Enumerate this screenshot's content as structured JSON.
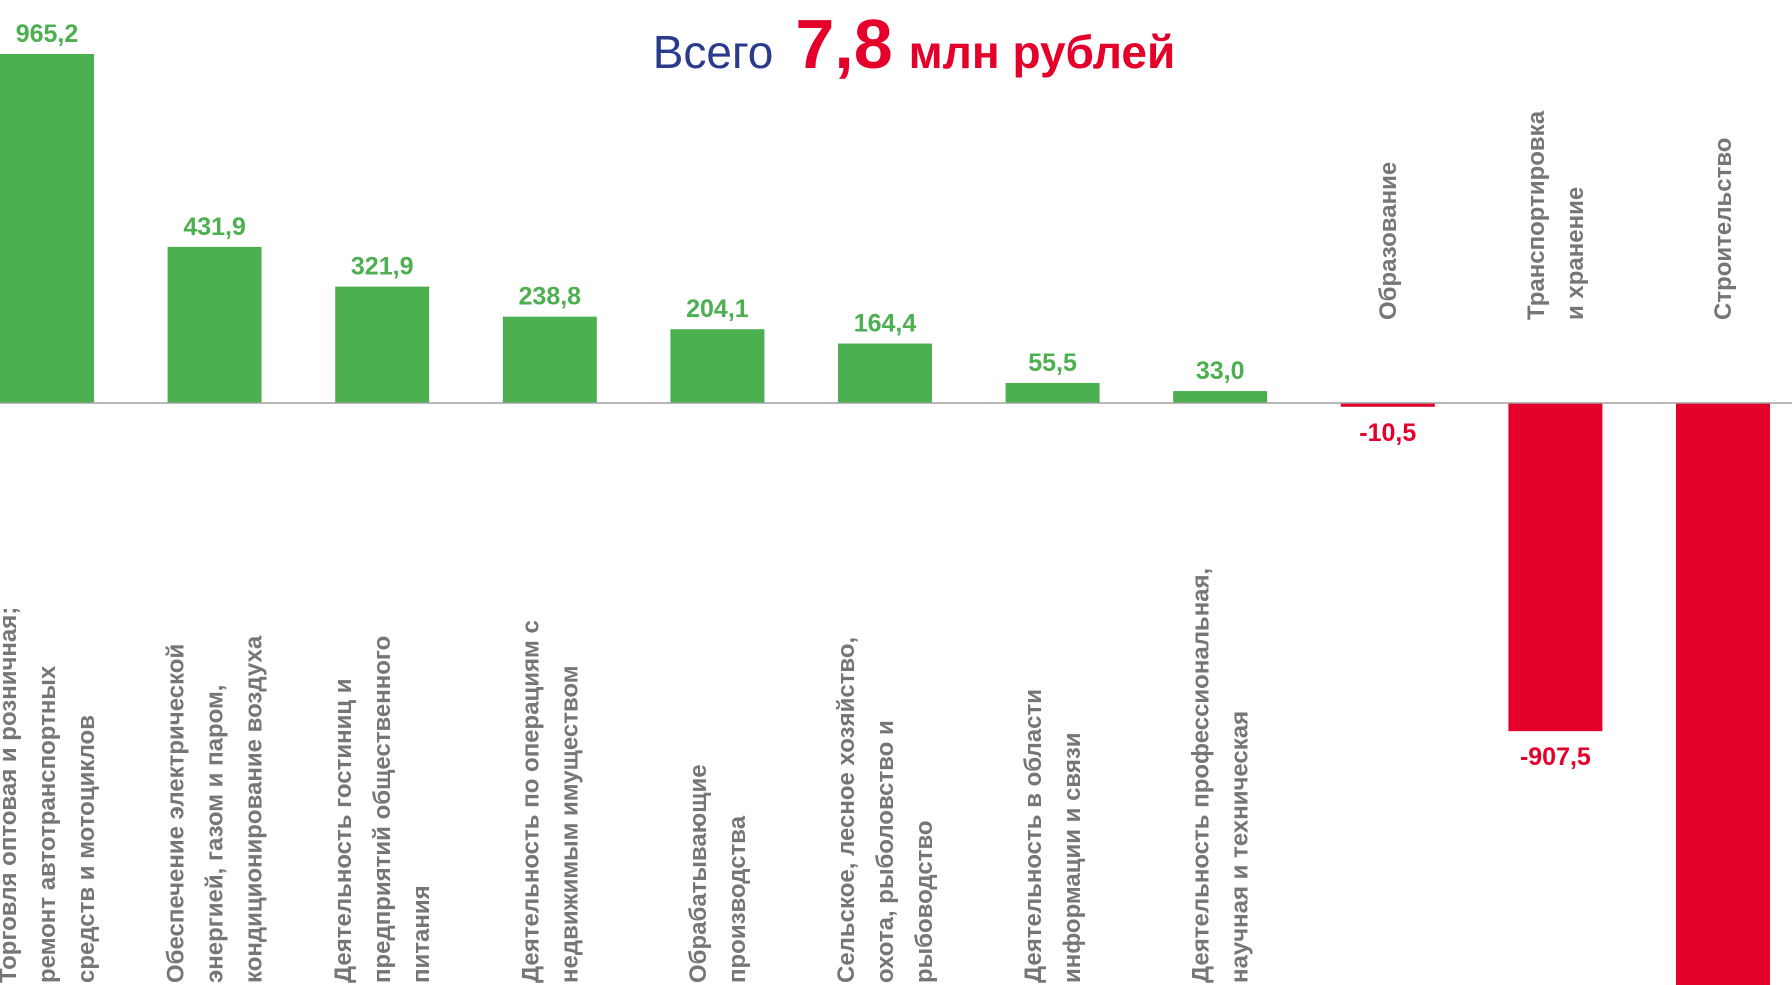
{
  "chart_data": {
    "type": "bar",
    "title": {
      "prefix": "Всего",
      "total": "7,8",
      "unit": "млн рублей"
    },
    "categories": [
      "Торговля оптовая и розничная;\nремонт автотранспортных\nсредств и мотоциклов",
      "Обеспечение электрической\nэнергией, газом  и паром,\nкондиционирование воздуха",
      "Деятельность гостиниц и\nпредприятий общественного\nпитания",
      "Деятельность по операциям с\nнедвижимым имуществом",
      "Обрабатывающие\nпроизводства",
      "Сельское, лесное  хозяйство,\nохота, рыболовство и\nрыбоводство",
      "Деятельность в области\nинформации и связи",
      "Деятельность профессиональная,\nнаучная и техническая",
      "Образование",
      "Транспортировка\nи хранение",
      "Строительство"
    ],
    "values": [
      965.2,
      431.9,
      321.9,
      238.8,
      204.1,
      164.4,
      55.5,
      33.0,
      -10.5,
      -907.5,
      -1700
    ],
    "value_labels": [
      "965,2",
      "431,9",
      "321,9",
      "238,8",
      "204,1",
      "164,4",
      "55,5",
      "33,0",
      "-10,5",
      "-907,5",
      null
    ],
    "positive_color": "#4caf50",
    "negative_color": "#e4002b"
  }
}
